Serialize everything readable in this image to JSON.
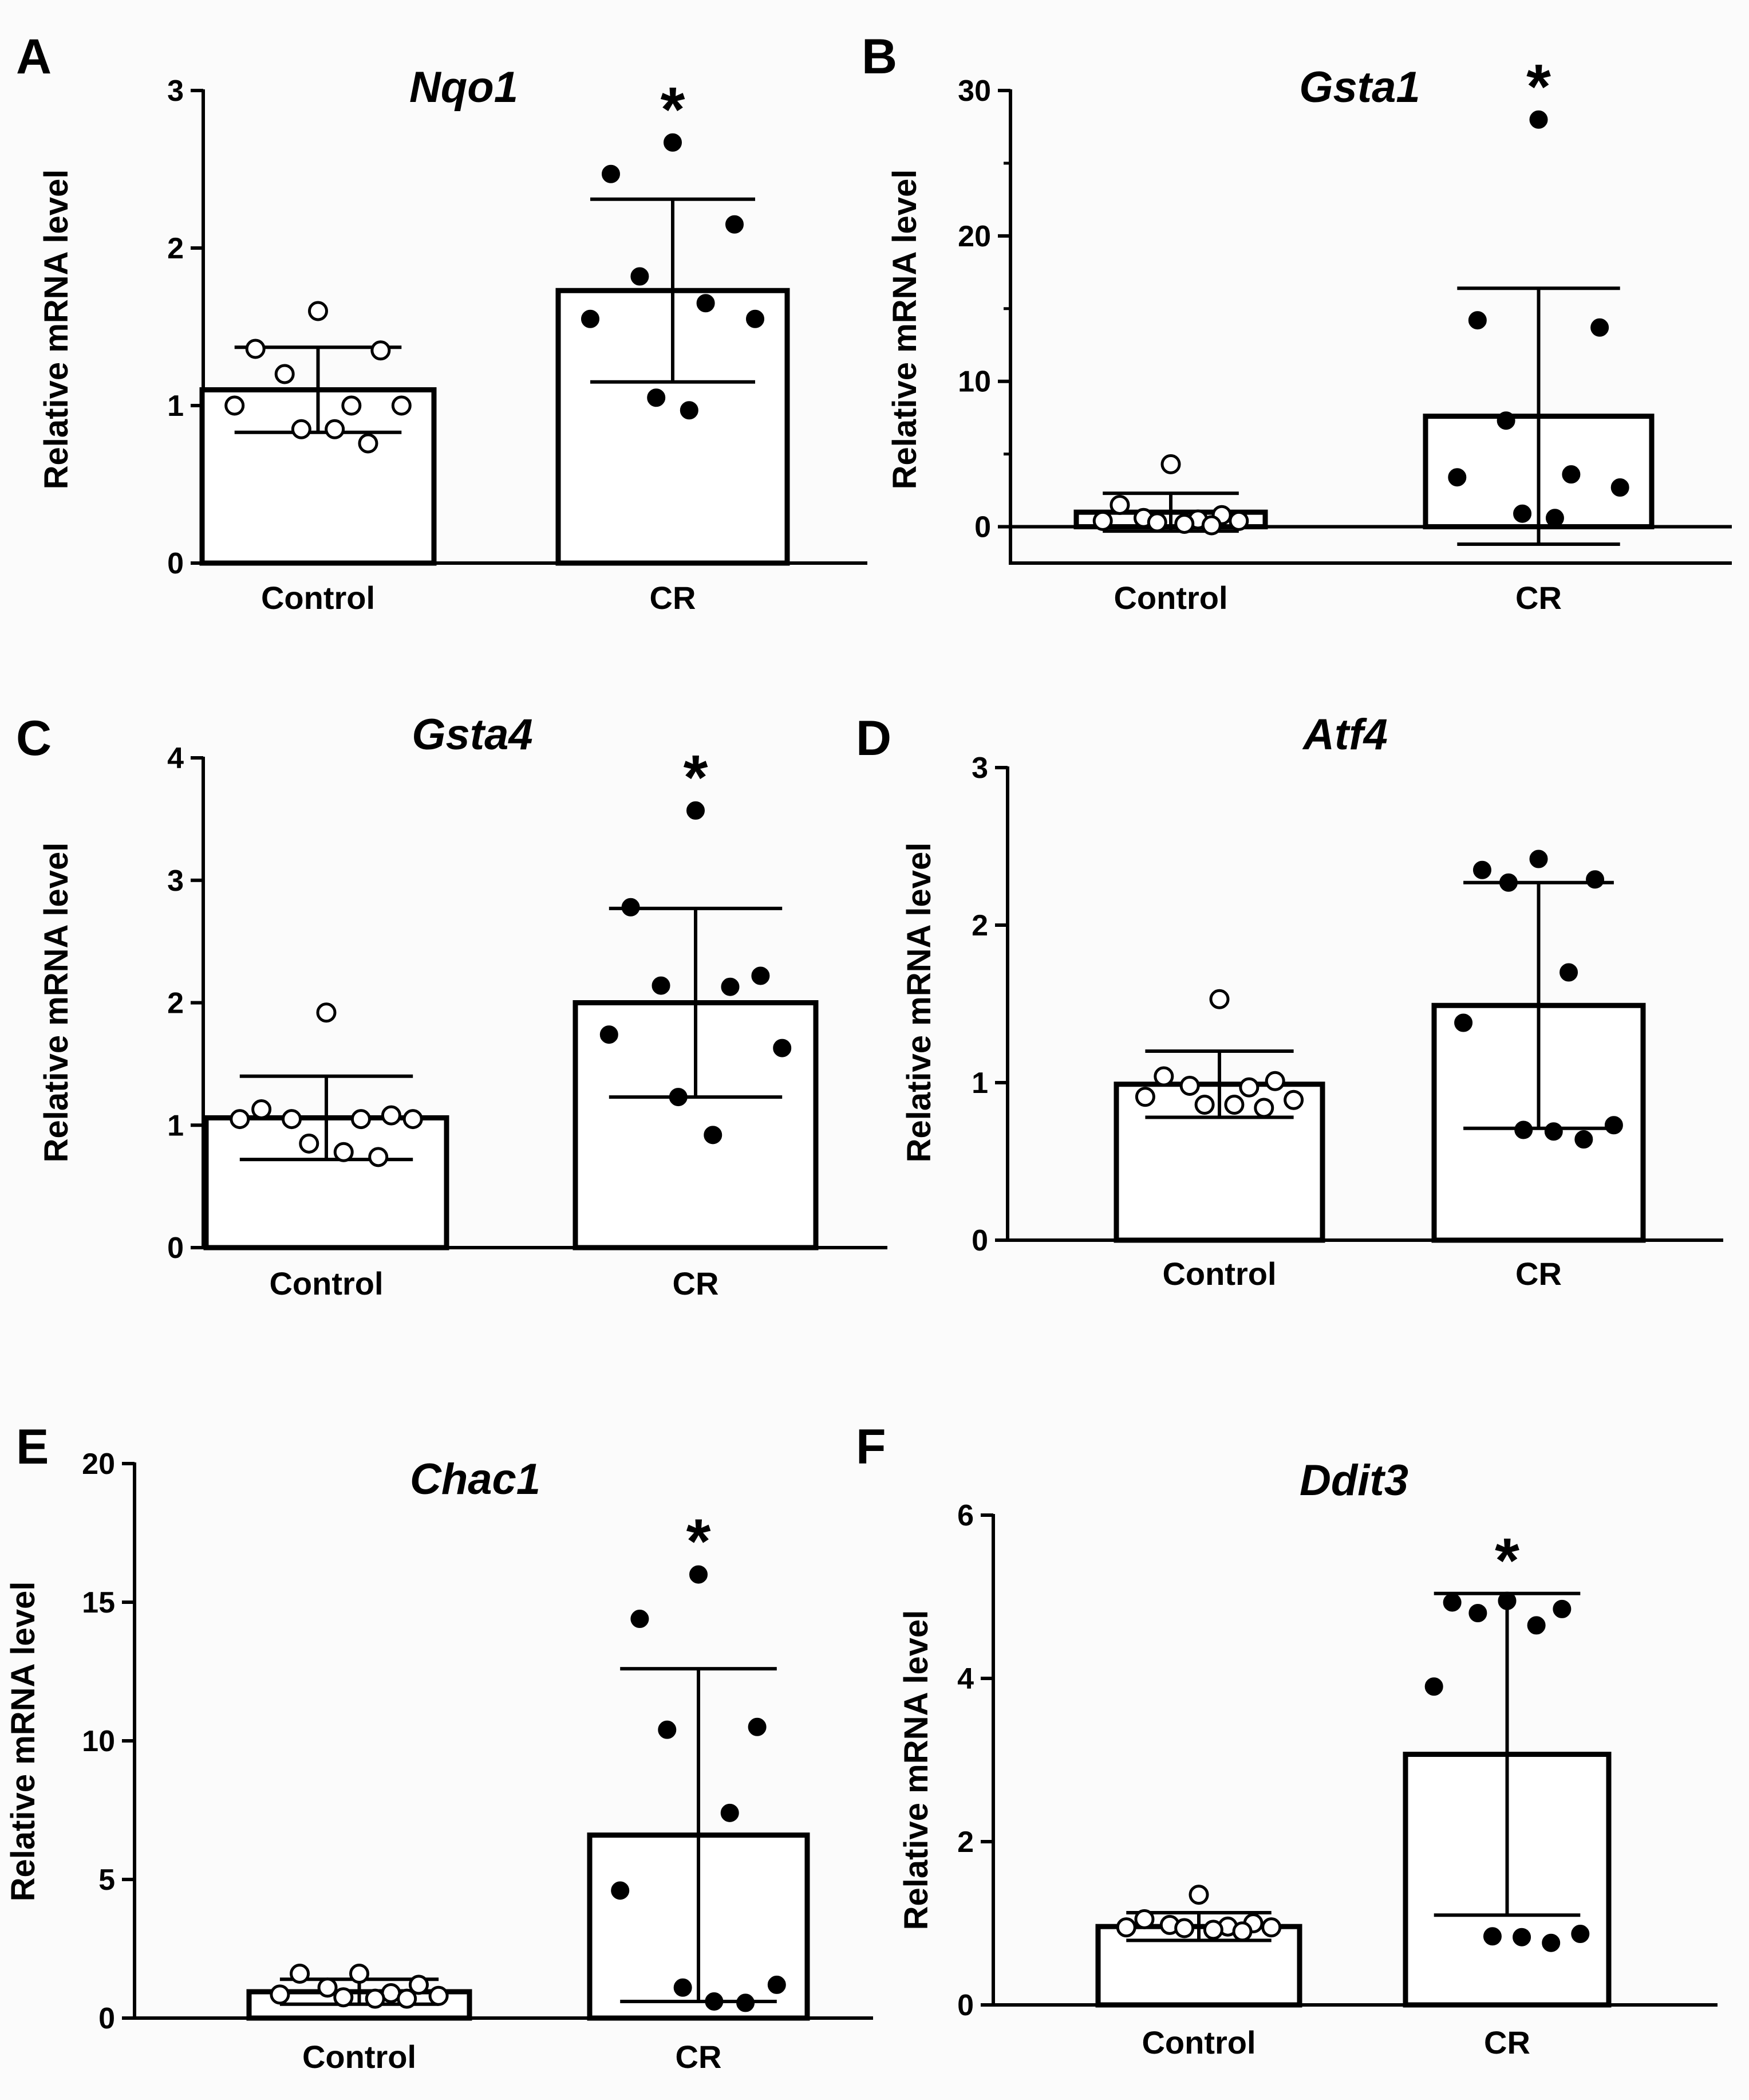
{
  "figure": {
    "background": "#fbfbfb",
    "ink": "#000000"
  },
  "chart_data": [
    {
      "panel": "A",
      "type": "bar",
      "title": "Nqo1",
      "ylabel": "Relative mRNA level",
      "ylim": [
        0,
        3
      ],
      "yticks": [
        0,
        1,
        2,
        3
      ],
      "yticklabels": [
        "0",
        "1",
        "2",
        "3"
      ],
      "minor_ticks": [],
      "categories": [
        "Control",
        "CR"
      ],
      "groups": [
        {
          "name": "Control",
          "mean": 1.1,
          "sd": 0.27,
          "marker": "open",
          "points": [
            1.6,
            1.36,
            1.35,
            1.2,
            1.0,
            1.0,
            1.0,
            0.85,
            0.85,
            0.76
          ]
        },
        {
          "name": "CR",
          "mean": 1.73,
          "sd": 0.58,
          "marker": "filled",
          "significance": "*",
          "points": [
            2.67,
            2.47,
            2.15,
            1.82,
            1.65,
            1.55,
            1.55,
            1.05,
            0.97
          ]
        }
      ]
    },
    {
      "panel": "B",
      "type": "bar",
      "title": "Gsta1",
      "ylabel": "Relative mRNA level",
      "ylim": [
        -2.5,
        30
      ],
      "yticks": [
        0,
        10,
        20,
        30
      ],
      "yticklabels": [
        "0",
        "10",
        "20",
        "30"
      ],
      "minor_ticks": [
        5,
        15,
        25
      ],
      "zero_line": true,
      "categories": [
        "Control",
        "CR"
      ],
      "groups": [
        {
          "name": "Control",
          "mean": 1.0,
          "sd": 1.3,
          "marker": "open",
          "points": [
            4.3,
            1.5,
            0.8,
            0.6,
            0.5,
            0.4,
            0.4,
            0.3,
            0.2,
            0.1
          ]
        },
        {
          "name": "CR",
          "mean": 7.6,
          "sd": 8.8,
          "marker": "filled",
          "significance": "*",
          "points": [
            28.0,
            14.2,
            13.7,
            7.3,
            3.6,
            3.4,
            2.7,
            0.9,
            0.6
          ]
        }
      ]
    },
    {
      "panel": "C",
      "type": "bar",
      "title": "Gsta4",
      "ylabel": "Relative mRNA level",
      "ylim": [
        0,
        4
      ],
      "yticks": [
        0,
        1,
        2,
        3,
        4
      ],
      "yticklabels": [
        "0",
        "1",
        "2",
        "3",
        "4"
      ],
      "minor_ticks": [],
      "categories": [
        "Control",
        "CR"
      ],
      "groups": [
        {
          "name": "Control",
          "mean": 1.06,
          "sd": 0.34,
          "marker": "open",
          "points": [
            1.92,
            1.13,
            1.08,
            1.05,
            1.05,
            1.05,
            1.05,
            0.85,
            0.78,
            0.74
          ]
        },
        {
          "name": "CR",
          "mean": 2.0,
          "sd": 0.77,
          "marker": "filled",
          "significance": "*",
          "points": [
            3.57,
            2.78,
            2.22,
            2.14,
            2.13,
            1.74,
            1.63,
            1.23,
            0.92
          ]
        }
      ]
    },
    {
      "panel": "D",
      "type": "bar",
      "title": "Atf4",
      "ylabel": "Relative mRNA level",
      "ylim": [
        0,
        3
      ],
      "yticks": [
        0,
        1,
        2,
        3
      ],
      "yticklabels": [
        "0",
        "1",
        "2",
        "3"
      ],
      "minor_ticks": [],
      "categories": [
        "Control",
        "CR"
      ],
      "groups": [
        {
          "name": "Control",
          "mean": 0.99,
          "sd": 0.21,
          "marker": "open",
          "points": [
            1.53,
            1.04,
            1.01,
            0.98,
            0.97,
            0.91,
            0.89,
            0.86,
            0.86,
            0.84
          ]
        },
        {
          "name": "CR",
          "mean": 1.49,
          "sd": 0.78,
          "marker": "filled",
          "points": [
            2.42,
            2.35,
            2.29,
            2.27,
            1.7,
            1.38,
            0.73,
            0.7,
            0.69,
            0.64
          ]
        }
      ]
    },
    {
      "panel": "E",
      "type": "bar",
      "title": "Chac1",
      "ylabel": "Relative mRNA level",
      "ylim": [
        0,
        20
      ],
      "yticks": [
        0,
        5,
        10,
        15,
        20
      ],
      "yticklabels": [
        "0",
        "5",
        "10",
        "15",
        "20"
      ],
      "minor_ticks": [],
      "categories": [
        "Control",
        "CR"
      ],
      "groups": [
        {
          "name": "Control",
          "mean": 0.95,
          "sd": 0.45,
          "marker": "open",
          "points": [
            1.6,
            1.6,
            1.2,
            1.1,
            0.9,
            0.85,
            0.8,
            0.75,
            0.7,
            0.7
          ]
        },
        {
          "name": "CR",
          "mean": 6.6,
          "sd": 6.0,
          "marker": "filled",
          "significance": "*",
          "points": [
            16.0,
            14.4,
            10.5,
            10.4,
            7.4,
            4.6,
            1.2,
            1.1,
            0.6,
            0.55
          ]
        }
      ]
    },
    {
      "panel": "F",
      "type": "bar",
      "title": "Ddit3",
      "ylabel": "Relative mRNA level",
      "ylim": [
        0,
        6
      ],
      "yticks": [
        0,
        2,
        4,
        6
      ],
      "yticklabels": [
        "0",
        "2",
        "4",
        "6"
      ],
      "minor_ticks": [],
      "categories": [
        "Control",
        "CR"
      ],
      "groups": [
        {
          "name": "Control",
          "mean": 0.96,
          "sd": 0.17,
          "marker": "open",
          "points": [
            1.35,
            1.05,
            1.0,
            0.98,
            0.96,
            0.95,
            0.95,
            0.94,
            0.92,
            0.9
          ]
        },
        {
          "name": "CR",
          "mean": 3.07,
          "sd": 1.97,
          "marker": "filled",
          "significance": "*",
          "points": [
            4.95,
            4.93,
            4.85,
            4.8,
            4.65,
            3.9,
            0.87,
            0.84,
            0.83,
            0.76
          ]
        }
      ]
    }
  ]
}
